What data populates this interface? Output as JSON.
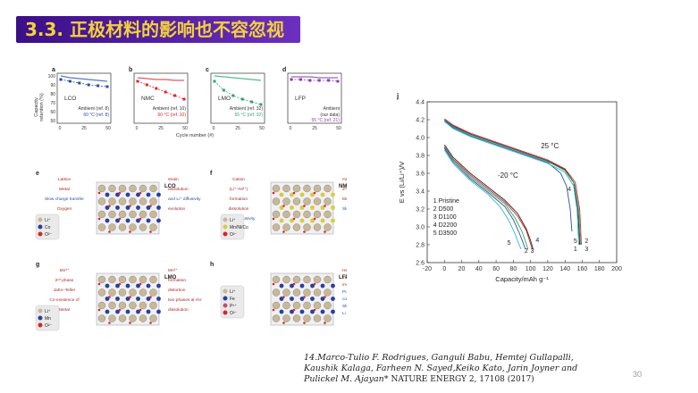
{
  "slide": {
    "title": "3.3. 正极材料的影响也不容忽视",
    "page_number": "30",
    "reference_line1": "14.Marco-Tulio F. Rodrigues, Ganguli Babu, Hemtej Gullapalli,",
    "reference_line2": "Kaushik Kalaga, Farheen N. Sayed,Keiko Kato, Jarin Joyner and",
    "reference_line3": "Pulickel M. Ajayan*",
    "reference_journal": "NATURE ENERGY 2, 17108 (2017)"
  },
  "cycle_panels": {
    "y_axis_label_1": "Capacity",
    "y_axis_label_2": "retention (%)",
    "x_axis_label": "Cycle number (#)",
    "y_ticks": [
      "100",
      "90",
      "80",
      "70",
      "60",
      "50"
    ],
    "x_ticks": [
      "0",
      "25",
      "50"
    ],
    "panels": [
      {
        "letter": "a",
        "material": "LCO",
        "legend1": "Ambient (ref. 8)",
        "legend2": "60 °C (ref. 8)"
      },
      {
        "letter": "b",
        "material": "NMC",
        "legend1": "Ambient (ref. 10)",
        "legend2": "60 °C (ref. 10)"
      },
      {
        "letter": "c",
        "material": "LMO",
        "legend1": "Ambient (ref. 32)",
        "legend2": "55 °C (ref. 32)"
      },
      {
        "letter": "d",
        "material": "LFP",
        "legend1": "Ambient",
        "legend1b": "(our data)",
        "legend2": "55 °C (ref. 21)"
      }
    ],
    "colors": {
      "blue": "#2a4fa3",
      "red": "#d9262b",
      "green": "#2fa36b",
      "purple": "#8b3fa8"
    }
  },
  "structures": {
    "e": {
      "letter": "e",
      "label": "LCO",
      "notes": [
        "Lattice",
        "strain",
        "Metal",
        "dissolution",
        "Slow charge transfer",
        "and Li⁺ diffusivity",
        "Oxygen",
        "evolution"
      ],
      "legend": [
        "Li⁺",
        "Co",
        "O²⁻"
      ]
    },
    "f": {
      "letter": "f",
      "label": "NMC",
      "notes": [
        "Cation",
        "mixing",
        "(Li⁺–Ni²⁺)",
        "2ⁿᵈ phase",
        "formation",
        "Metal",
        "dissolution",
        "Slow charge transfer",
        "and Li⁺ diffusivity"
      ],
      "legend": [
        "Li⁺",
        "Mn/Ni/Co",
        "O²⁻"
      ]
    },
    "g": {
      "letter": "g",
      "label": "LMO",
      "notes": [
        "Mn³⁺",
        "Mn²⁺",
        "2ⁿᵈ phase",
        "formation",
        "Jahn–Teller",
        "distortion",
        "Co-existence of",
        "two phases at HV",
        "Metal",
        "dissolution"
      ],
      "legend": [
        "Li⁺",
        "Mn",
        "O²⁻"
      ]
    },
    "h": {
      "letter": "h",
      "label": "LFP",
      "notes": [
        "High",
        "internal",
        "impedance",
        "Poor e⁻",
        "conductivity",
        "Sluggish",
        "Li transport"
      ],
      "legend": [
        "Li⁺",
        "Fe",
        "P⁵⁺",
        "O²⁻"
      ]
    }
  },
  "chart_data": {
    "type": "line",
    "panel_letter": "j",
    "xlabel": "Capacity/mAh g⁻¹",
    "ylabel": "E vs (Li/Li⁺)/V",
    "xlim": [
      -20,
      200
    ],
    "ylim": [
      2.6,
      4.4
    ],
    "x_ticks": [
      -20,
      0,
      20,
      40,
      60,
      80,
      100,
      120,
      140,
      160,
      180,
      200
    ],
    "y_ticks": [
      2.6,
      2.8,
      3.0,
      3.2,
      3.4,
      3.6,
      3.8,
      4.0,
      4.2,
      4.4
    ],
    "annotations": [
      "25 °C",
      "-20 °C"
    ],
    "legend": [
      "1 Pristine",
      "2 D500",
      "3 D1100",
      "4 D2200",
      "5 D3500"
    ],
    "curve_labels_25C": [
      "4",
      "2",
      "1",
      "5",
      "3"
    ],
    "curve_labels_m20C": [
      "5",
      "2",
      "3",
      "4"
    ],
    "series": [
      {
        "label": "1",
        "color": "#2b2b2b",
        "x_25": [
          0,
          10,
          30,
          60,
          90,
          120,
          140,
          150,
          155,
          157
        ],
        "y_25": [
          4.2,
          4.13,
          4.04,
          3.94,
          3.84,
          3.74,
          3.64,
          3.5,
          3.2,
          2.8
        ],
        "x_m20": [
          0,
          10,
          30,
          50,
          70,
          85,
          95,
          100,
          103
        ],
        "y_m20": [
          3.92,
          3.78,
          3.6,
          3.45,
          3.3,
          3.15,
          2.98,
          2.85,
          2.75
        ]
      },
      {
        "label": "2",
        "color": "#d9262b",
        "x_25": [
          0,
          10,
          30,
          60,
          90,
          120,
          140,
          152,
          157,
          159
        ],
        "y_25": [
          4.21,
          4.14,
          4.05,
          3.95,
          3.85,
          3.75,
          3.65,
          3.5,
          3.2,
          2.8
        ],
        "x_m20": [
          0,
          10,
          30,
          50,
          70,
          85,
          95,
          99,
          102
        ],
        "y_m20": [
          3.9,
          3.76,
          3.58,
          3.43,
          3.28,
          3.12,
          2.96,
          2.84,
          2.75
        ]
      },
      {
        "label": "3",
        "color": "#2fa36b",
        "x_25": [
          0,
          10,
          30,
          60,
          90,
          120,
          140,
          151,
          156,
          158
        ],
        "y_25": [
          4.2,
          4.12,
          4.03,
          3.93,
          3.83,
          3.73,
          3.63,
          3.48,
          3.18,
          2.8
        ],
        "x_m20": [
          0,
          10,
          30,
          50,
          70,
          82,
          90,
          94,
          97
        ],
        "y_m20": [
          3.89,
          3.75,
          3.56,
          3.41,
          3.26,
          3.1,
          2.95,
          2.84,
          2.75
        ]
      },
      {
        "label": "4",
        "color": "#2a4fa3",
        "x_25": [
          0,
          10,
          30,
          60,
          90,
          120,
          135,
          142,
          146,
          148
        ],
        "y_25": [
          4.19,
          4.11,
          4.02,
          3.92,
          3.82,
          3.72,
          3.6,
          3.45,
          3.2,
          2.95
        ],
        "x_m20": [
          0,
          10,
          30,
          50,
          70,
          80,
          87,
          91,
          94
        ],
        "y_m20": [
          3.88,
          3.73,
          3.54,
          3.39,
          3.23,
          3.08,
          2.93,
          2.83,
          2.75
        ]
      },
      {
        "label": "5",
        "color": "#33b4c9",
        "x_25": [
          0,
          10,
          30,
          60,
          90,
          120,
          140,
          150,
          154,
          156
        ],
        "y_25": [
          4.18,
          4.1,
          4.01,
          3.91,
          3.81,
          3.71,
          3.61,
          3.46,
          3.18,
          2.8
        ],
        "x_m20": [
          0,
          10,
          30,
          50,
          65,
          75,
          82,
          86,
          89
        ],
        "y_m20": [
          3.86,
          3.71,
          3.52,
          3.37,
          3.22,
          3.07,
          2.92,
          2.82,
          2.75
        ]
      }
    ]
  }
}
